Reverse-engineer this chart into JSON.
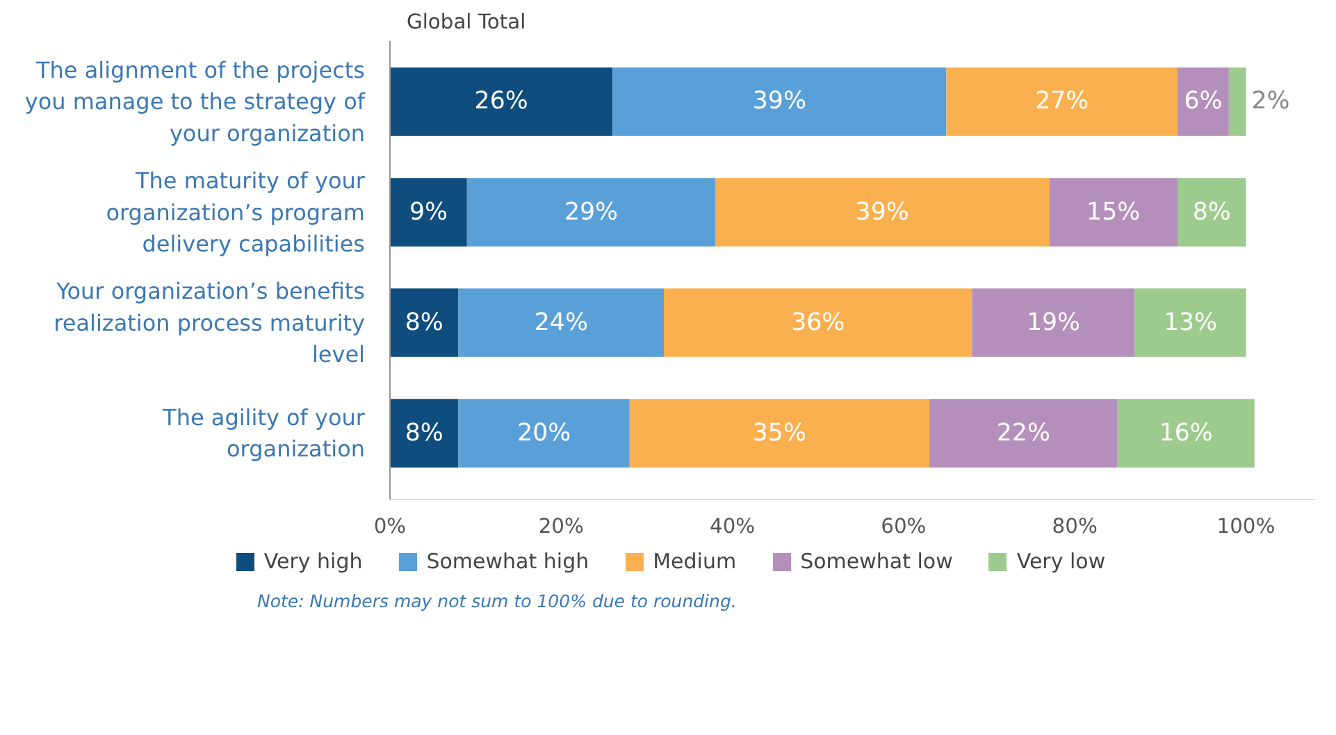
{
  "chart_data": {
    "type": "bar",
    "orientation": "horizontal",
    "stacked": true,
    "subtitle": "Global Total",
    "categories": [
      "The alignment of the projects you manage to the strategy of your organization",
      "The maturity of your organization’s program delivery capabilities",
      "Your organization’s benefits realization process maturity level",
      "The agility of your organization"
    ],
    "series": [
      {
        "name": "Very high",
        "color": "#0e4d7e",
        "values": [
          26,
          9,
          8,
          8
        ],
        "value_labels": [
          "26%",
          "9%",
          "8%",
          "8%"
        ]
      },
      {
        "name": "Somewhat high",
        "color": "#5aa0d8",
        "values": [
          39,
          29,
          24,
          20
        ],
        "value_labels": [
          "39%",
          "29%",
          "24%",
          "20%"
        ]
      },
      {
        "name": "Medium",
        "color": "#fbb050",
        "values": [
          27,
          39,
          36,
          35
        ],
        "value_labels": [
          "27%",
          "39%",
          "36%",
          "35%"
        ]
      },
      {
        "name": "Somewhat low",
        "color": "#b48fbb",
        "values": [
          6,
          15,
          19,
          22
        ],
        "value_labels": [
          "6%",
          "15%",
          "19%",
          "22%"
        ]
      },
      {
        "name": "Very low",
        "color": "#9ccb8d",
        "values": [
          2,
          8,
          13,
          16
        ],
        "value_labels": [
          "2%",
          "8%",
          "13%",
          "16%"
        ]
      }
    ],
    "xlim": [
      0,
      108
    ],
    "xticks": [
      {
        "value": 0,
        "label": "0%"
      },
      {
        "value": 20,
        "label": "20%"
      },
      {
        "value": 40,
        "label": "40%"
      },
      {
        "value": 60,
        "label": "60%"
      },
      {
        "value": 80,
        "label": "80%"
      },
      {
        "value": 100,
        "label": "100%"
      }
    ],
    "grid": false,
    "legend": "bottom",
    "annotations": [
      "Note: Numbers may not sum to 100% due to rounding."
    ]
  }
}
